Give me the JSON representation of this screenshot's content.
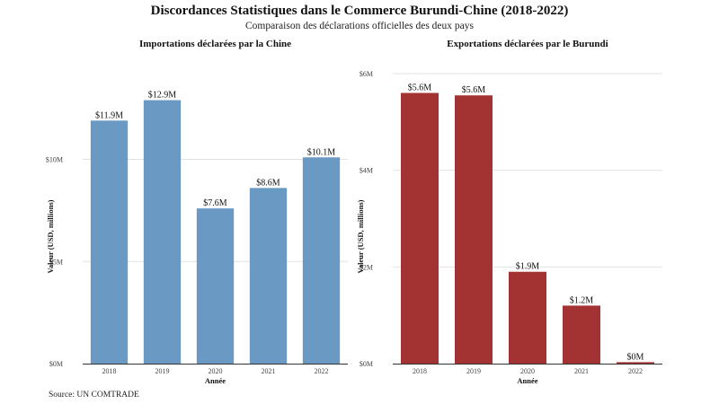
{
  "title": "Discordances Statistiques dans le Commerce Burundi-Chine (2018-2022)",
  "subtitle": "Comparaison des déclarations officielles des deux pays",
  "source": "Source: UN COMTRADE",
  "chart_data": [
    {
      "type": "bar",
      "title": "Importations déclarées par la Chine",
      "xlabel": "Année",
      "ylabel": "Valeur (USD, millions)",
      "categories": [
        "2018",
        "2019",
        "2020",
        "2021",
        "2022"
      ],
      "values": [
        11.9,
        12.9,
        7.6,
        8.6,
        10.1
      ],
      "data_labels": [
        "$11.9M",
        "$12.9M",
        "$7.6M",
        "$8.6M",
        "$10.1M"
      ],
      "ylim": [
        0,
        14.2
      ],
      "yticks": [
        0,
        5,
        10
      ],
      "ytick_labels": [
        "$0M",
        "$5M",
        "$10M"
      ],
      "color": "#6a9ac4",
      "grid": true
    },
    {
      "type": "bar",
      "title": "Exportations déclarées par le Burundi",
      "xlabel": "Année",
      "ylabel": "Valeur (USD, millions)",
      "categories": [
        "2018",
        "2019",
        "2020",
        "2021",
        "2022"
      ],
      "values": [
        5.6,
        5.55,
        1.9,
        1.2,
        0.03
      ],
      "data_labels": [
        "$5.6M",
        "$5.6M",
        "$1.9M",
        "$1.2M",
        "$0M"
      ],
      "ylim": [
        0,
        6
      ],
      "yticks": [
        0,
        2,
        4,
        6
      ],
      "ytick_labels": [
        "$0M",
        "$2M",
        "$4M",
        "$6M"
      ],
      "color": "#a33232",
      "grid": true
    }
  ]
}
